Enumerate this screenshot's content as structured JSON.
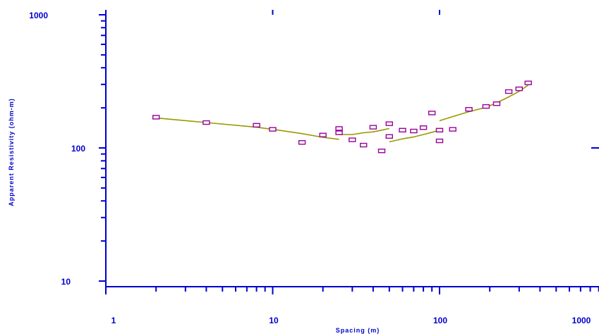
{
  "chart_data": {
    "type": "scatter",
    "xlabel": "Spacing (m)",
    "ylabel": "Apparent Resistivity (ohm-m)",
    "x_scale": "log",
    "y_scale": "log",
    "xlim": [
      1,
      1200
    ],
    "ylim": [
      10,
      1000
    ],
    "x_tick_labels": [
      "1",
      "10",
      "100",
      "1000"
    ],
    "y_tick_labels": [
      "10",
      "100",
      "1000"
    ],
    "grid": false,
    "colors": {
      "axis": "#0000cc",
      "points": "#990099",
      "curve": "#999900"
    },
    "points": {
      "x": [
        2,
        4,
        8,
        10,
        15,
        20,
        25,
        25,
        30,
        35,
        40,
        45,
        50,
        50,
        60,
        70,
        80,
        90,
        100,
        100,
        120,
        150,
        190,
        220,
        260,
        300,
        340
      ],
      "y": [
        170,
        155,
        148,
        138,
        110,
        125,
        140,
        130,
        115,
        105,
        143,
        95,
        122,
        152,
        136,
        134,
        142,
        183,
        113,
        136,
        138,
        195,
        205,
        215,
        265,
        278,
        308
      ]
    },
    "model_curves": [
      {
        "x": [
          2,
          4,
          8,
          10,
          15,
          20,
          25
        ],
        "y": [
          168,
          155,
          143,
          138,
          128,
          120,
          116
        ]
      },
      {
        "x": [
          25,
          30,
          35,
          40,
          45,
          50
        ],
        "y": [
          126,
          126,
          130,
          132,
          136,
          140
        ]
      },
      {
        "x": [
          50,
          60,
          70,
          80,
          90,
          100
        ],
        "y": [
          111,
          117,
          121,
          126,
          131,
          136
        ]
      },
      {
        "x": [
          100,
          120,
          150,
          190,
          220,
          260,
          300,
          340
        ],
        "y": [
          160,
          172,
          187,
          202,
          218,
          242,
          266,
          296
        ]
      }
    ]
  }
}
